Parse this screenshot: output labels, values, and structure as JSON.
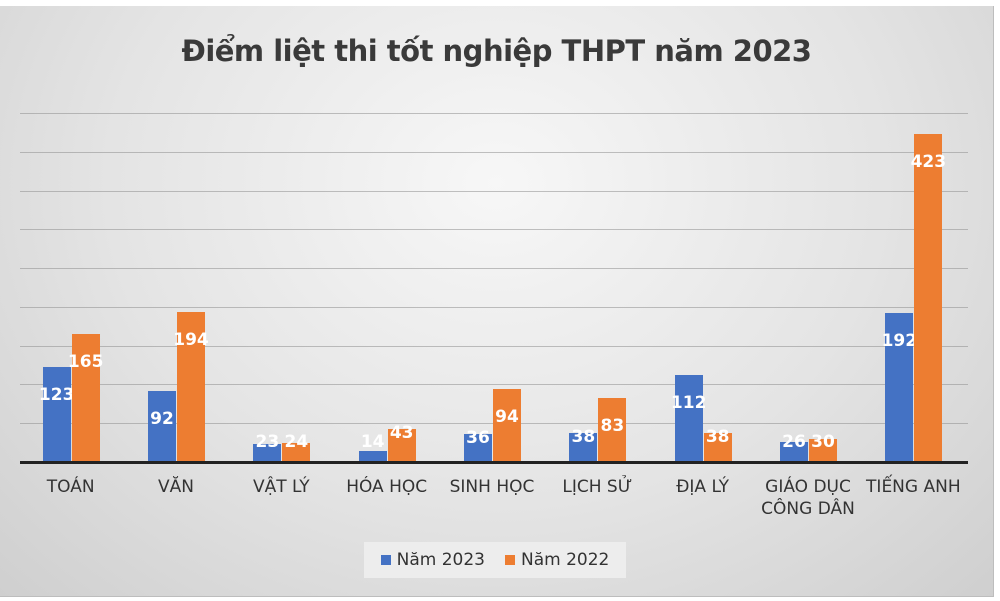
{
  "chart_data": {
    "type": "bar",
    "title": "Điểm liệt thi tốt nghiệp THPT năm 2023",
    "xlabel": "",
    "ylabel": "",
    "categories": [
      "TOÁN",
      "VĂN",
      "VẬT LÝ",
      "HÓA HỌC",
      "SINH HỌC",
      "LỊCH SỬ",
      "ĐỊA LÝ",
      "GIÁO DỤC CÔNG DÂN",
      "TIẾNG ANH"
    ],
    "series": [
      {
        "name": "Năm 2023",
        "color": "#4472c4",
        "values": [
          123,
          92,
          23,
          14,
          36,
          38,
          112,
          26,
          192
        ]
      },
      {
        "name": "Năm 2022",
        "color": "#ed7d31",
        "values": [
          165,
          194,
          24,
          43,
          94,
          83,
          38,
          30,
          423
        ]
      }
    ],
    "ylim": [
      0,
      450
    ],
    "gridlines": [
      50,
      100,
      150,
      200,
      250,
      300,
      350,
      400,
      450
    ],
    "grid": true,
    "y_axis_labels_shown": false,
    "data_labels": true,
    "legend_position": "bottom"
  },
  "legend": {
    "items": [
      {
        "label": "Năm 2023",
        "color": "#4472c4"
      },
      {
        "label": "Năm 2022",
        "color": "#ed7d31"
      }
    ]
  }
}
